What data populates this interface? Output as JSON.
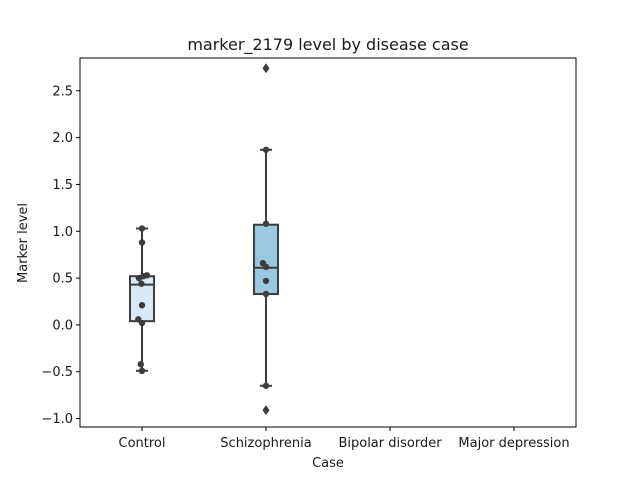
{
  "chart_data": {
    "type": "box",
    "title": "marker_2179 level by disease case",
    "xlabel": "Case",
    "ylabel": "Marker level",
    "categories": [
      "Control",
      "Schizophrenia",
      "Bipolar disorder",
      "Major depression"
    ],
    "ylim": [
      -1.09,
      2.85
    ],
    "yticks": [
      -1.0,
      -0.5,
      0.0,
      0.5,
      1.0,
      1.5,
      2.0,
      2.5
    ],
    "ytick_labels": [
      "−1.0",
      "−0.5",
      "0.0",
      "0.5",
      "1.0",
      "1.5",
      "2.0",
      "2.5"
    ],
    "grid": false,
    "boxes": [
      {
        "category": "Control",
        "color": "#dbe9f6",
        "q1": 0.04,
        "median": 0.43,
        "q3": 0.52,
        "whisker_low": -0.49,
        "whisker_high": 1.03,
        "outliers": []
      },
      {
        "category": "Schizophrenia",
        "color": "#9ac8e0",
        "q1": 0.33,
        "median": 0.61,
        "q3": 1.07,
        "whisker_low": -0.65,
        "whisker_high": 1.87,
        "outliers": [
          2.74,
          -0.91
        ]
      }
    ],
    "points": [
      {
        "category": "Control",
        "jitter": 0.0,
        "y": 1.03
      },
      {
        "category": "Control",
        "jitter": 0.0,
        "y": 0.88
      },
      {
        "category": "Control",
        "jitter": 0.08,
        "y": 0.53
      },
      {
        "category": "Control",
        "jitter": 0.02,
        "y": 0.52
      },
      {
        "category": "Control",
        "jitter": -0.05,
        "y": 0.5
      },
      {
        "category": "Control",
        "jitter": -0.01,
        "y": 0.44
      },
      {
        "category": "Control",
        "jitter": 0.0,
        "y": 0.21
      },
      {
        "category": "Control",
        "jitter": -0.06,
        "y": 0.06
      },
      {
        "category": "Control",
        "jitter": 0.0,
        "y": 0.02
      },
      {
        "category": "Control",
        "jitter": -0.02,
        "y": -0.42
      },
      {
        "category": "Control",
        "jitter": 0.0,
        "y": -0.49
      },
      {
        "category": "Schizophrenia",
        "jitter": 0.0,
        "y": 1.87
      },
      {
        "category": "Schizophrenia",
        "jitter": 0.0,
        "y": 1.08
      },
      {
        "category": "Schizophrenia",
        "jitter": -0.05,
        "y": 0.66
      },
      {
        "category": "Schizophrenia",
        "jitter": 0.0,
        "y": 0.62
      },
      {
        "category": "Schizophrenia",
        "jitter": 0.0,
        "y": 0.47
      },
      {
        "category": "Schizophrenia",
        "jitter": 0.0,
        "y": 0.33
      },
      {
        "category": "Schizophrenia",
        "jitter": 0.0,
        "y": -0.65
      }
    ],
    "colors": {
      "box_edge": "#3d3d3d",
      "point": "#3d3d3d",
      "axis": "#000000"
    }
  }
}
